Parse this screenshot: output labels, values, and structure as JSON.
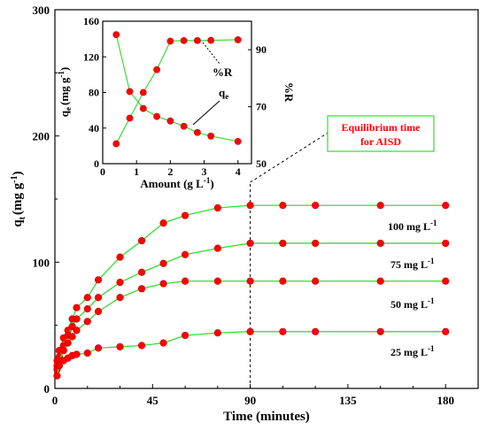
{
  "chart_data": [
    {
      "type": "line",
      "xlabel": "Time (minutes)",
      "ylabel": "qt (mg g-1)",
      "ylabel_main": "q",
      "ylabel_sub": "t",
      "ylabel_rest": "(mg g",
      "ylabel_sup": "-1",
      "ylabel_end": ")",
      "xlabel_text": "Time (minutes)",
      "xlim": [
        0,
        195
      ],
      "ylim": [
        0,
        300
      ],
      "xticks": [
        0,
        45,
        90,
        135,
        180
      ],
      "yticks": [
        0,
        100,
        200,
        300
      ],
      "ytick_labels": [
        "0",
        "100",
        "200",
        "300"
      ],
      "xtick_labels": [
        "0",
        "45",
        "90",
        "135",
        "180"
      ],
      "colors": {
        "line": "#33dd33",
        "marker": "#ff0000",
        "marker_edge": "#cc0000"
      },
      "series": [
        {
          "name": "100 mg L-1",
          "label_main": "100 mg L",
          "label_sup": "-1",
          "x": [
            1,
            2,
            4,
            6,
            8,
            10,
            15,
            20,
            30,
            40,
            50,
            60,
            75,
            90,
            105,
            120,
            150,
            180
          ],
          "y": [
            22,
            30,
            40,
            46,
            55,
            64,
            72,
            86,
            104,
            117,
            131,
            137,
            143,
            145,
            145,
            145,
            145,
            145
          ]
        },
        {
          "name": "75 mg L-1",
          "label_main": "75 mg L",
          "label_sup": "-1",
          "x": [
            1,
            2,
            4,
            6,
            8,
            10,
            15,
            20,
            30,
            40,
            50,
            60,
            75,
            90,
            105,
            120,
            150,
            180
          ],
          "y": [
            18,
            25,
            34,
            42,
            49,
            55,
            63,
            72,
            84,
            92,
            99,
            106,
            111,
            115,
            115,
            115,
            115,
            115
          ]
        },
        {
          "name": "50 mg L-1",
          "label_main": "50 mg L",
          "label_sup": "-1",
          "x": [
            1,
            2,
            4,
            6,
            8,
            10,
            15,
            20,
            30,
            40,
            50,
            60,
            75,
            90,
            105,
            120,
            150,
            180
          ],
          "y": [
            15,
            22,
            30,
            36,
            41,
            46,
            53,
            61,
            72,
            79,
            83,
            85,
            85,
            85,
            85,
            85,
            85,
            85
          ]
        },
        {
          "name": "25 mg L-1",
          "label_main": "25 mg L",
          "label_sup": "-1",
          "x": [
            1,
            2,
            4,
            6,
            8,
            10,
            15,
            20,
            30,
            40,
            50,
            60,
            75,
            90,
            105,
            120,
            150,
            180
          ],
          "y": [
            10,
            18,
            22,
            24,
            26,
            27,
            28,
            32,
            33,
            34,
            36,
            42,
            44,
            45,
            45,
            45,
            45,
            45
          ]
        }
      ],
      "vertical_line_x": 90,
      "annotation": {
        "line1": "Equilibrium time",
        "line2": "for AISD",
        "text_color": "#ff0000",
        "border_color": "#33dd33"
      }
    },
    {
      "type": "line",
      "xlabel": "Amount (g L-1)",
      "xlabel_main": "Amount (g L",
      "xlabel_sup": "-1",
      "xlabel_end": ")",
      "ylabel_left": "qe (mg g-1)",
      "ylabel_left_main": "q",
      "ylabel_left_sub": "e",
      "ylabel_left_rest": "(mg g",
      "ylabel_left_sup": "-1",
      "ylabel_left_end": ")",
      "ylabel_right": "%R",
      "xlim": [
        0,
        4.4
      ],
      "ylim_left": [
        0,
        160
      ],
      "ylim_right": [
        50,
        100
      ],
      "xticks": [
        0,
        1,
        2,
        3,
        4
      ],
      "xtick_labels": [
        "0",
        "1",
        "2",
        "3",
        "4"
      ],
      "yticks_left": [
        0,
        40,
        80,
        120,
        160
      ],
      "ytick_left_labels": [
        "0",
        "40",
        "80",
        "120",
        "160"
      ],
      "yticks_right": [
        50,
        70,
        90
      ],
      "ytick_right_labels": [
        "50",
        "70",
        "90"
      ],
      "series": [
        {
          "name": "qe",
          "label_main": "q",
          "label_sub": "e",
          "axis": "left",
          "x": [
            0.4,
            0.8,
            1.2,
            1.6,
            2.0,
            2.4,
            2.8,
            3.2,
            4.0
          ],
          "y": [
            145,
            81,
            62,
            53,
            48,
            42,
            35,
            31,
            25
          ]
        },
        {
          "name": "%R",
          "label_main": "%R",
          "axis": "right",
          "x": [
            0.4,
            0.8,
            1.2,
            1.6,
            2.0,
            2.4,
            2.8,
            3.2,
            4.0
          ],
          "y": [
            57,
            66,
            75,
            83,
            93,
            93.2,
            93.2,
            93.3,
            93.5
          ]
        }
      ]
    }
  ]
}
